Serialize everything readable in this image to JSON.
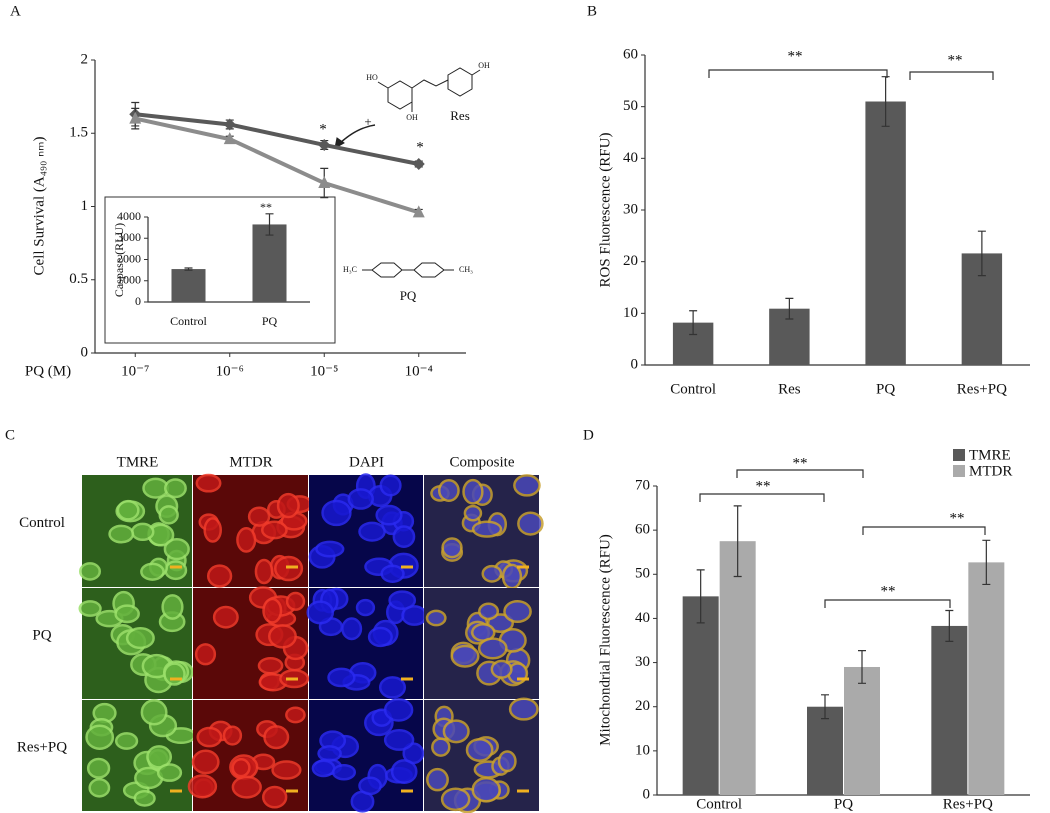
{
  "panel_labels": [
    "A",
    "B",
    "C",
    "D"
  ],
  "chart_data": [
    {
      "type": "line",
      "categories": [
        "10⁻⁷",
        "10⁻⁶",
        "10⁻⁵",
        "10⁻⁴"
      ],
      "x_label": "PQ (M)",
      "y_label": "Cell Survival (A₄₉₀ ₙₘ)",
      "ylim": [
        0,
        2
      ],
      "yticks": [
        0,
        0.5,
        1,
        1.5,
        2
      ],
      "series": [
        {
          "color": "#595959",
          "marker": "diamond",
          "values": [
            1.63,
            1.56,
            1.42,
            1.29
          ],
          "errors": [
            0.08,
            0.03,
            0.03,
            0.02
          ]
        },
        {
          "color": "#8c8c8c",
          "marker": "triangle",
          "values": [
            1.6,
            1.46,
            1.16,
            0.96
          ],
          "errors": [
            0.07,
            0.02,
            0.1,
            0.02
          ]
        }
      ],
      "annotations": [
        "*",
        "*"
      ],
      "structure_labels": [
        "Res",
        "+",
        "PQ"
      ],
      "structure_atoms": [
        "HO",
        "OH",
        "OH",
        "H₃C",
        "CH₃"
      ]
    },
    {
      "type": "bar",
      "categories": [
        "Control",
        "PQ"
      ],
      "values": [
        1550,
        3650
      ],
      "errors": [
        50,
        500
      ],
      "color": "#595959",
      "ylim": [
        0,
        4000
      ],
      "yticks": [
        0,
        1000,
        2000,
        3000,
        4000
      ],
      "y_label": "Caspase (RLU)",
      "annotations": [
        "**"
      ]
    },
    {
      "type": "bar",
      "categories": [
        "Control",
        "Res",
        "PQ",
        "Res+PQ"
      ],
      "values": [
        8.2,
        10.9,
        51,
        21.6
      ],
      "errors": [
        2.3,
        2,
        4.8,
        4.3
      ],
      "color": "#595959",
      "ylim": [
        0,
        60
      ],
      "yticks": [
        0,
        10,
        20,
        30,
        40,
        50,
        60
      ],
      "y_label": "ROS Fluorescence (RFU)",
      "annotations": [
        "**",
        "**"
      ]
    },
    {
      "type": "grouped_bar",
      "categories": [
        "Control",
        "PQ",
        "Res+PQ"
      ],
      "series": [
        {
          "name": "TMRE",
          "color": "#595959",
          "values": [
            45,
            20,
            38.3
          ],
          "errors": [
            6,
            2.7,
            3.5
          ]
        },
        {
          "name": "MTDR",
          "color": "#aaaaaa",
          "values": [
            57.5,
            29,
            52.7
          ],
          "errors": [
            8,
            3.7,
            5
          ]
        }
      ],
      "ylim": [
        0,
        70
      ],
      "yticks": [
        0,
        10,
        20,
        30,
        40,
        50,
        60,
        70
      ],
      "y_label": "Mitochondrial Fluorescence (RFU)",
      "legend": "top-right",
      "annotations": [
        "**",
        "**",
        "**",
        "**"
      ]
    }
  ],
  "image_grid": {
    "columns": [
      "TMRE",
      "MTDR",
      "DAPI",
      "Composite"
    ],
    "rows": [
      "Control",
      "PQ",
      "Res+PQ"
    ]
  }
}
